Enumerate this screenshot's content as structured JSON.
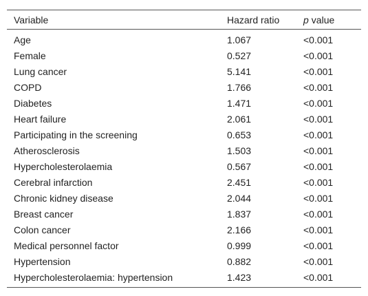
{
  "table": {
    "header": {
      "variable": "Variable",
      "hazard_ratio": "Hazard ratio",
      "p_symbol": "p",
      "p_text": "value"
    },
    "rows": [
      [
        "Age",
        "1.067",
        "<0.001"
      ],
      [
        "Female",
        "0.527",
        "<0.001"
      ],
      [
        "Lung cancer",
        "5.141",
        "<0.001"
      ],
      [
        "COPD",
        "1.766",
        "<0.001"
      ],
      [
        "Diabetes",
        "1.471",
        "<0.001"
      ],
      [
        "Heart failure",
        "2.061",
        "<0.001"
      ],
      [
        "Participating in the screening",
        "0.653",
        "<0.001"
      ],
      [
        "Atherosclerosis",
        "1.503",
        "<0.001"
      ],
      [
        "Hypercholesterolaemia",
        "0.567",
        "<0.001"
      ],
      [
        "Cerebral infarction",
        "2.451",
        "<0.001"
      ],
      [
        "Chronic kidney disease",
        "2.044",
        "<0.001"
      ],
      [
        "Breast cancer",
        "1.837",
        "<0.001"
      ],
      [
        "Colon cancer",
        "2.166",
        "<0.001"
      ],
      [
        "Medical personnel factor",
        "0.999",
        "<0.001"
      ],
      [
        "Hypertension",
        "0.882",
        "<0.001"
      ],
      [
        "Hypercholesterolaemia: hypertension",
        "1.423",
        "<0.001"
      ]
    ]
  }
}
